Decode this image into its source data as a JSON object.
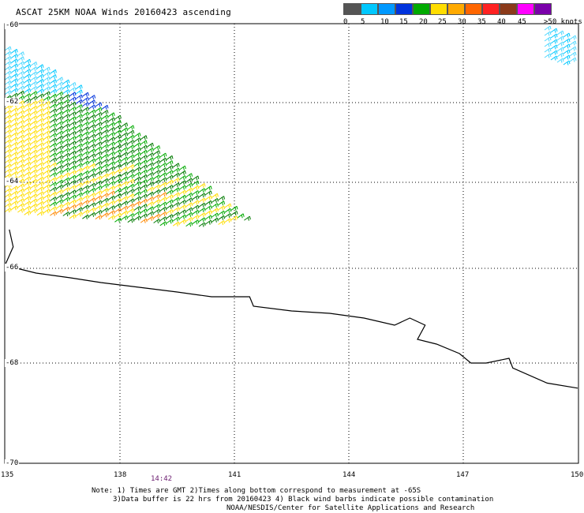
{
  "title": "ASCAT 25KM NOAA Winds 20160423 ascending",
  "legend": {
    "colors": [
      "#555555",
      "#00c8ff",
      "#0099ff",
      "#0033dd",
      "#00aa00",
      "#ffdd00",
      "#ffaa00",
      "#ff6600",
      "#ff2222",
      "#8b3a1a",
      "#ff00ff",
      "#7a00aa"
    ],
    "labels": [
      "0",
      "5",
      "10",
      "15",
      "20",
      "25",
      "30",
      "35",
      "40",
      "45",
      ">50 knots"
    ]
  },
  "axes": {
    "lon": {
      "range": [
        135,
        150
      ],
      "ticks": [
        "135",
        "138",
        "141",
        "144",
        "147",
        "150"
      ]
    },
    "lat": {
      "range": [
        -60,
        -70
      ],
      "ticks": [
        "-60",
        "-62",
        "-64",
        "-66",
        "-68",
        "-70"
      ]
    }
  },
  "time_marker": "14:42",
  "notes": [
    "Note: 1) Times are GMT 2)Times along bottom correspond to measurement at -65S",
    "3)Data buffer is 22 hrs from 20160423 4) Black wind barbs indicate possible contamination",
    "NOAA/NESDIS/Center for Satellite Applications and Research"
  ],
  "chart_data": {
    "type": "map",
    "projection": "lat-lon",
    "swaths": [
      {
        "name": "main",
        "lon_range": [
          135,
          141.8
        ],
        "lat_range": [
          -60.8,
          -64.9
        ]
      },
      {
        "name": "top-right",
        "lon_range": [
          149.3,
          150
        ],
        "lat_range": [
          -60.1,
          -60.8
        ]
      }
    ],
    "coastline": [
      [
        135.1,
        -65.1
      ],
      [
        135.2,
        -65.5
      ],
      [
        135.0,
        -65.9
      ],
      [
        135.3,
        -66.0
      ],
      [
        135.8,
        -66.1
      ],
      [
        136.7,
        -66.2
      ],
      [
        137.5,
        -66.3
      ],
      [
        138.5,
        -66.4
      ],
      [
        139.5,
        -66.5
      ],
      [
        140.4,
        -66.6
      ],
      [
        141.4,
        -66.6
      ],
      [
        141.5,
        -66.8
      ],
      [
        142.5,
        -66.9
      ],
      [
        143.5,
        -66.95
      ],
      [
        144.4,
        -67.05
      ],
      [
        145.2,
        -67.2
      ],
      [
        145.6,
        -67.05
      ],
      [
        146.0,
        -67.2
      ],
      [
        145.8,
        -67.5
      ],
      [
        146.3,
        -67.6
      ],
      [
        146.9,
        -67.8
      ],
      [
        147.2,
        -68.0
      ],
      [
        147.6,
        -68.0
      ],
      [
        148.2,
        -67.9
      ],
      [
        148.3,
        -68.1
      ],
      [
        149.2,
        -68.4
      ],
      [
        150.0,
        -68.5
      ]
    ]
  }
}
